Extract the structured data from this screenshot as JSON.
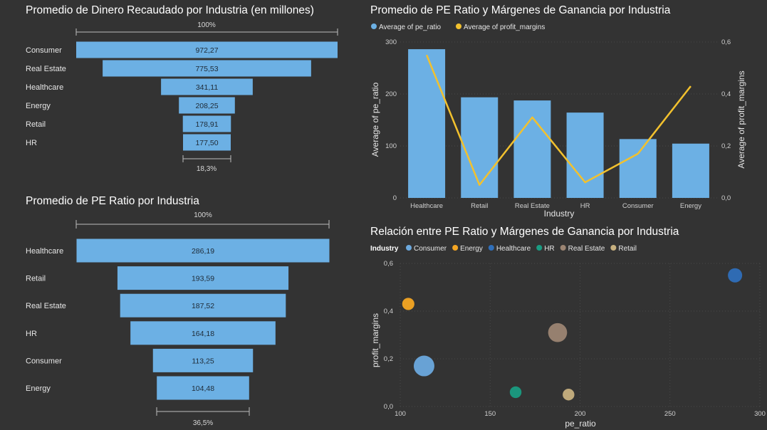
{
  "colors": {
    "bar": "#6cb0e4",
    "line": "#f2c12e",
    "consumer": "#6ca9de",
    "energy": "#f5a623",
    "healthcare": "#2f6fba",
    "hr": "#1a9c82",
    "real_estate": "#9c8573",
    "retail": "#c7b07f",
    "axis": "#c8c8c8"
  },
  "chart_data": [
    {
      "type": "funnel",
      "title": "Promedio de Dinero Recaudado por Industria (en millones)",
      "top_label": "100%",
      "bottom_label": "18,3%",
      "categories": [
        "Consumer",
        "Real Estate",
        "Healthcare",
        "Energy",
        "Retail",
        "HR"
      ],
      "values": [
        972.27,
        775.53,
        341.11,
        208.25,
        178.91,
        177.5
      ],
      "value_labels": [
        "972,27",
        "775,53",
        "341,11",
        "208,25",
        "178,91",
        "177,50"
      ]
    },
    {
      "type": "funnel",
      "title": "Promedio de PE Ratio por Industria",
      "top_label": "100%",
      "bottom_label": "36,5%",
      "categories": [
        "Healthcare",
        "Retail",
        "Real Estate",
        "HR",
        "Consumer",
        "Energy"
      ],
      "values": [
        286.19,
        193.59,
        187.52,
        164.18,
        113.25,
        104.48
      ],
      "value_labels": [
        "286,19",
        "193,59",
        "187,52",
        "164,18",
        "113,25",
        "104,48"
      ]
    },
    {
      "type": "bar",
      "title": "Promedio de PE Ratio y Márgenes de Ganancia por Industria",
      "legend": [
        "Average of pe_ratio",
        "Average of profit_margins"
      ],
      "legend_position": "top-left",
      "categories": [
        "Healthcare",
        "Retail",
        "Real Estate",
        "HR",
        "Consumer",
        "Energy"
      ],
      "series": [
        {
          "name": "Average of pe_ratio",
          "type": "bar",
          "axis": "left",
          "values": [
            286.19,
            193.59,
            187.52,
            164.18,
            113.25,
            104.48
          ]
        },
        {
          "name": "Average of profit_margins",
          "type": "line",
          "axis": "right",
          "values": [
            0.55,
            0.05,
            0.31,
            0.06,
            0.17,
            0.43
          ]
        }
      ],
      "xlabel": "Industry",
      "ylabel": "Average of pe_ratio",
      "y2label": "Average of profit_margins",
      "ylim": [
        0,
        300
      ],
      "y2lim": [
        0,
        0.6
      ],
      "yticks": [
        "0",
        "100",
        "200",
        "300"
      ],
      "y2ticks": [
        "0,0",
        "0,2",
        "0,4",
        "0,6"
      ]
    },
    {
      "type": "scatter",
      "title": "Relación entre PE Ratio y Márgenes de Ganancia por Industria",
      "legend_title": "Industry",
      "legend": [
        "Consumer",
        "Energy",
        "Healthcare",
        "HR",
        "Real Estate",
        "Retail"
      ],
      "legend_position": "top-left",
      "xlabel": "pe_ratio",
      "ylabel": "profit_margins",
      "xlim": [
        100,
        300
      ],
      "ylim": [
        0,
        0.6
      ],
      "xticks": [
        "100",
        "150",
        "200",
        "250",
        "300"
      ],
      "yticks": [
        "0,0",
        "0,2",
        "0,4",
        "0,6"
      ],
      "points": [
        {
          "name": "Consumer",
          "x": 113.25,
          "y": 0.17,
          "size": 972.27
        },
        {
          "name": "Energy",
          "x": 104.48,
          "y": 0.43,
          "size": 208.25
        },
        {
          "name": "Healthcare",
          "x": 286.19,
          "y": 0.55,
          "size": 341.11
        },
        {
          "name": "HR",
          "x": 164.18,
          "y": 0.06,
          "size": 177.5
        },
        {
          "name": "Real Estate",
          "x": 187.52,
          "y": 0.31,
          "size": 775.53
        },
        {
          "name": "Retail",
          "x": 193.59,
          "y": 0.05,
          "size": 178.91
        }
      ]
    }
  ]
}
